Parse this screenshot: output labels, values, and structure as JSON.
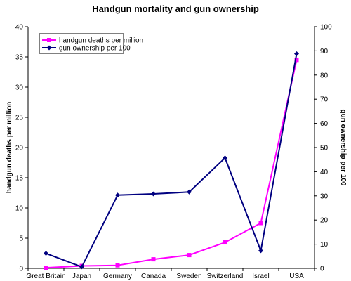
{
  "chart_data": {
    "type": "line",
    "title": "Handgun mortality and gun ownership",
    "xlabel": "",
    "ylabel": "handgun deaths per million",
    "y2label": "gun ownership per 100",
    "categories": [
      "Great Britain",
      "Japan",
      "Germany",
      "Canada",
      "Sweden",
      "Switzerland",
      "Israel",
      "USA"
    ],
    "ylim": [
      0,
      40
    ],
    "y2lim": [
      0,
      100
    ],
    "yticks": [
      "0",
      "5",
      "10",
      "15",
      "20",
      "25",
      "30",
      "35",
      "40"
    ],
    "y2ticks": [
      "0",
      "10",
      "20",
      "30",
      "40",
      "50",
      "60",
      "70",
      "80",
      "90",
      "100"
    ],
    "series": [
      {
        "name": "handgun deaths per million",
        "axis": "left",
        "color": "#ff00ff",
        "marker": "square",
        "values": [
          0.1,
          0.4,
          0.5,
          1.5,
          2.2,
          4.3,
          7.5,
          34.5
        ]
      },
      {
        "name": "gun ownership per 100",
        "axis": "right",
        "color": "#000080",
        "marker": "diamond",
        "values": [
          6.2,
          0.6,
          30.3,
          30.8,
          31.6,
          45.7,
          7.3,
          88.8
        ]
      }
    ],
    "legend": "top-left",
    "grid": false
  }
}
